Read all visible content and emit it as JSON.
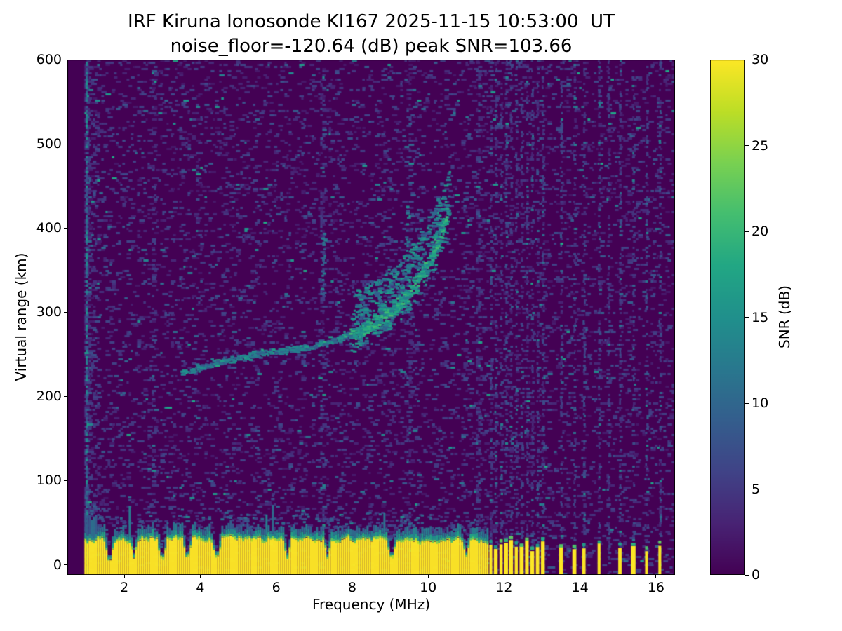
{
  "chart_data": {
    "type": "heatmap",
    "title": "IRF Kiruna Ionosonde KI167 2025-11-15 10:53:00  UT",
    "subtitle": "noise_floor=-120.64 (dB) peak SNR=103.66",
    "xlabel": "Frequency (MHz)",
    "ylabel": "Virtual range (km)",
    "xlim": [
      0.5,
      16.5
    ],
    "ylim": [
      -12,
      600
    ],
    "x_ticks": [
      2,
      4,
      6,
      8,
      10,
      12,
      14,
      16
    ],
    "y_ticks": [
      0,
      100,
      200,
      300,
      400,
      500,
      600
    ],
    "data_f_start": 0.95,
    "data_f_end": 16.42,
    "noise_floor_db": -120.64,
    "peak_snr_db": 103.66,
    "colorbar": {
      "label": "SNR (dB)",
      "min": 0,
      "max": 30,
      "ticks": [
        0,
        5,
        10,
        15,
        20,
        25,
        30
      ],
      "colormap": "viridis"
    },
    "ground_clutter": {
      "f_start": 0.95,
      "f_end": 11.55,
      "top_km_mean": 30,
      "top_km_jitter": 7,
      "notch_freqs": [
        1.6,
        2.25,
        3.0,
        3.65,
        4.45,
        6.3,
        7.35,
        9.05,
        11.0
      ]
    },
    "echo_trace": {
      "points": [
        [
          3.5,
          228
        ],
        [
          4.0,
          234
        ],
        [
          4.5,
          240
        ],
        [
          5.0,
          245
        ],
        [
          5.5,
          249
        ],
        [
          6.0,
          252
        ],
        [
          6.5,
          255
        ],
        [
          7.0,
          259
        ],
        [
          7.5,
          266
        ],
        [
          8.0,
          273
        ],
        [
          8.3,
          279
        ],
        [
          8.6,
          287
        ],
        [
          8.9,
          297
        ],
        [
          9.2,
          308
        ],
        [
          9.5,
          322
        ],
        [
          9.8,
          340
        ],
        [
          10.0,
          356
        ],
        [
          10.2,
          374
        ],
        [
          10.35,
          392
        ],
        [
          10.45,
          406
        ],
        [
          10.52,
          418
        ]
      ],
      "spread_f_start": 8.0,
      "spread_km": 42
    },
    "vertical_streaks": [
      {
        "f": 7.25,
        "r0": 320,
        "r1": 405
      },
      {
        "f": 9.45,
        "r0": 355,
        "r1": 430
      },
      {
        "f": 10.3,
        "r0": 390,
        "r1": 428
      }
    ],
    "rfi_columns_low": [
      1.0,
      2.8,
      7.2,
      9.5,
      11.3
    ],
    "rfi_comb_high": [
      11.65,
      11.78,
      11.92,
      12.05,
      12.18,
      12.32,
      12.46,
      12.6,
      12.74,
      12.88,
      13.02,
      13.5,
      13.85,
      14.1,
      14.5,
      14.75,
      15.05,
      15.4,
      15.75,
      16.1
    ],
    "clutter_stub_freqs": [
      11.65,
      11.78,
      11.92,
      12.05,
      12.18,
      12.32,
      12.46,
      12.6,
      12.74,
      12.88,
      13.02,
      13.5,
      13.85,
      14.1,
      14.5,
      15.05,
      15.4,
      15.75,
      16.1
    ]
  }
}
